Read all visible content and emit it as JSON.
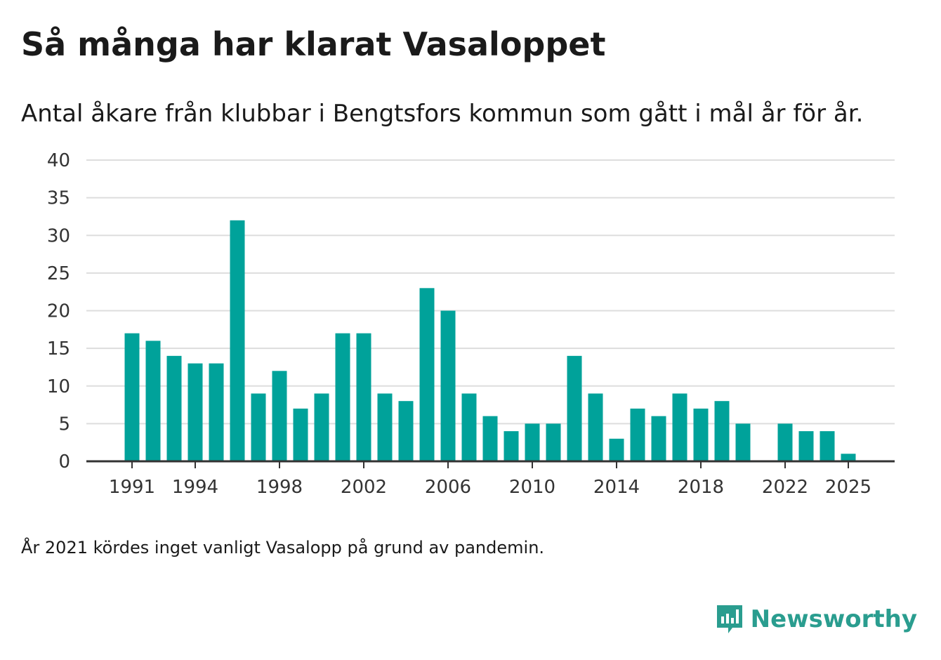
{
  "title": "Så många har klarat Vasaloppet",
  "subtitle": "Antal åkare från klubbar i Bengtsfors kommun som gått i mål år för år.",
  "footnote": "År 2021 kördes inget vanligt Vasalopp på grund av pandemin.",
  "brand": {
    "name": "Newsworthy",
    "icon": "newsworthy-logo-icon",
    "color": "#2a9d8f"
  },
  "chart_data": {
    "type": "bar",
    "title": "Så många har klarat Vasaloppet",
    "subtitle": "Antal åkare från klubbar i Bengtsfors kommun som gått i mål år för år.",
    "xlabel": "",
    "ylabel": "",
    "color": "#00a29a",
    "grid": true,
    "ylim": [
      0,
      40
    ],
    "yticks": [
      0,
      5,
      10,
      15,
      20,
      25,
      30,
      35,
      40
    ],
    "xticks": [
      1991,
      1994,
      1998,
      2002,
      2006,
      2010,
      2014,
      2018,
      2022,
      2025
    ],
    "categories": [
      1991,
      1992,
      1993,
      1994,
      1995,
      1996,
      1997,
      1998,
      1999,
      2000,
      2001,
      2002,
      2003,
      2004,
      2005,
      2006,
      2007,
      2008,
      2009,
      2010,
      2011,
      2012,
      2013,
      2014,
      2015,
      2016,
      2017,
      2018,
      2019,
      2020,
      2021,
      2022,
      2023,
      2024,
      2025
    ],
    "values": [
      17,
      16,
      14,
      13,
      13,
      32,
      9,
      12,
      7,
      9,
      17,
      17,
      9,
      8,
      23,
      20,
      9,
      6,
      4,
      5,
      5,
      14,
      9,
      3,
      7,
      6,
      9,
      7,
      8,
      5,
      null,
      5,
      4,
      4,
      1
    ]
  }
}
